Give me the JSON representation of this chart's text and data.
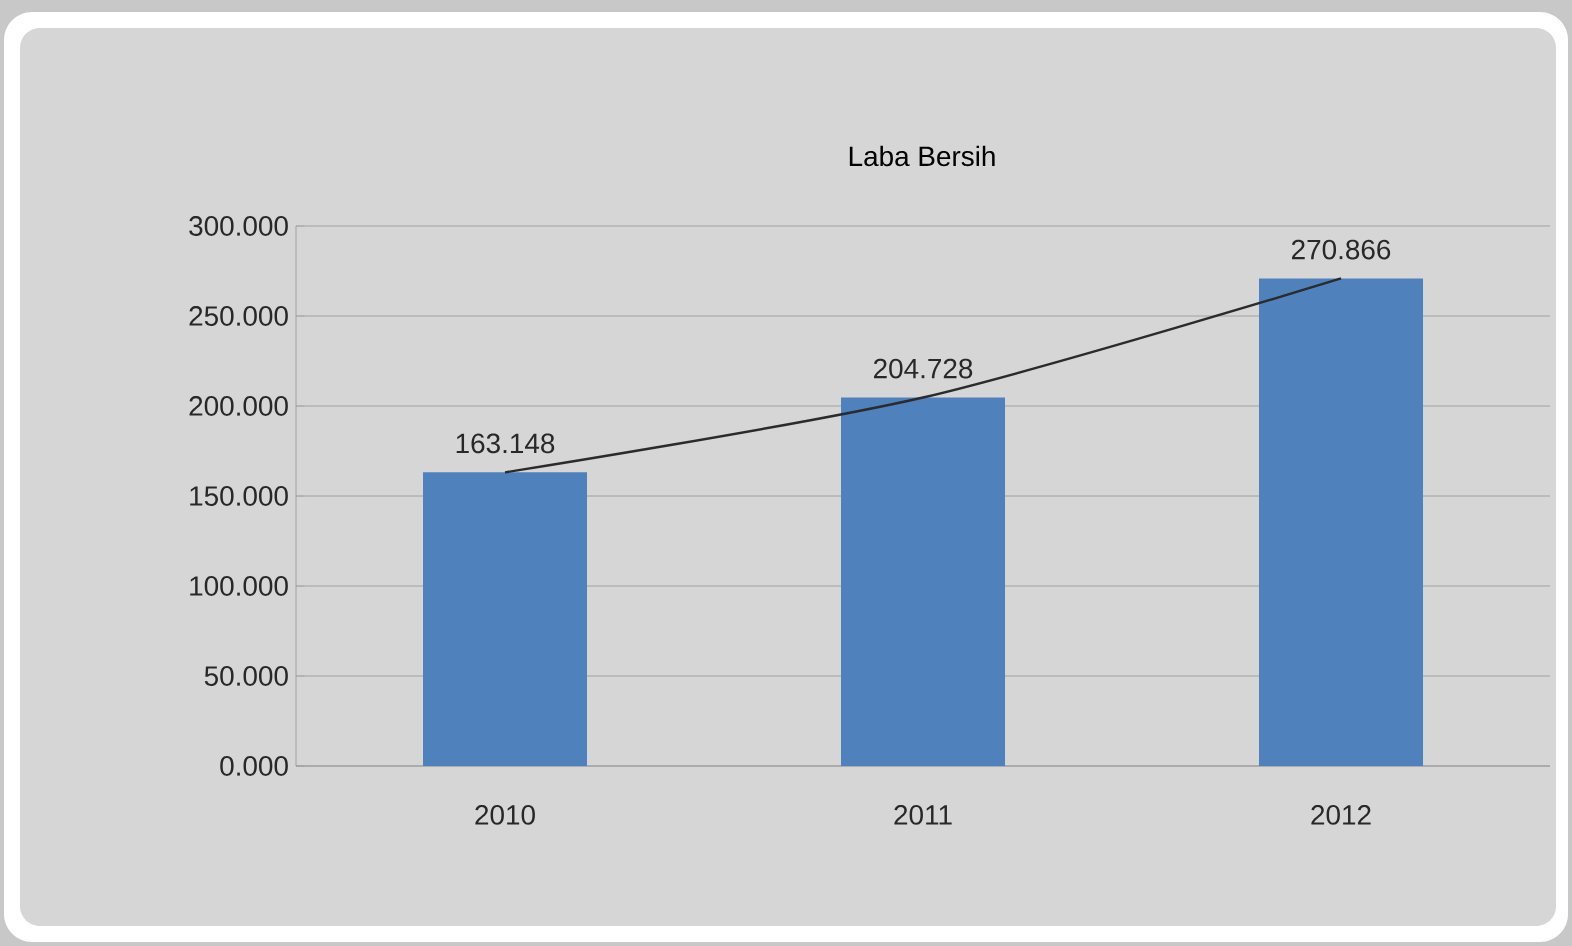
{
  "chart_data": {
    "type": "bar",
    "title": "Laba Bersih",
    "categories": [
      "2010",
      "2011",
      "2012"
    ],
    "series": [
      {
        "color": "#4f81bd",
        "values": [
          163.148,
          204.728,
          270.866
        ],
        "value_labels": [
          "163.148",
          "204.728",
          "270.866"
        ]
      },
      {
        "type": "line",
        "color": "#2b2b2b",
        "values": [
          163.148,
          204.728,
          270.866
        ],
        "marker": "none"
      }
    ],
    "ylim": [
      0,
      300
    ],
    "yticks": [
      {
        "value": 0,
        "label": "0.000"
      },
      {
        "value": 50,
        "label": "50.000"
      },
      {
        "value": 100,
        "label": "100.000"
      },
      {
        "value": 150,
        "label": "150.000"
      },
      {
        "value": 200,
        "label": "200.000"
      },
      {
        "value": 250,
        "label": "250.000"
      },
      {
        "value": 300,
        "label": "300.000"
      }
    ],
    "grid": "y"
  }
}
